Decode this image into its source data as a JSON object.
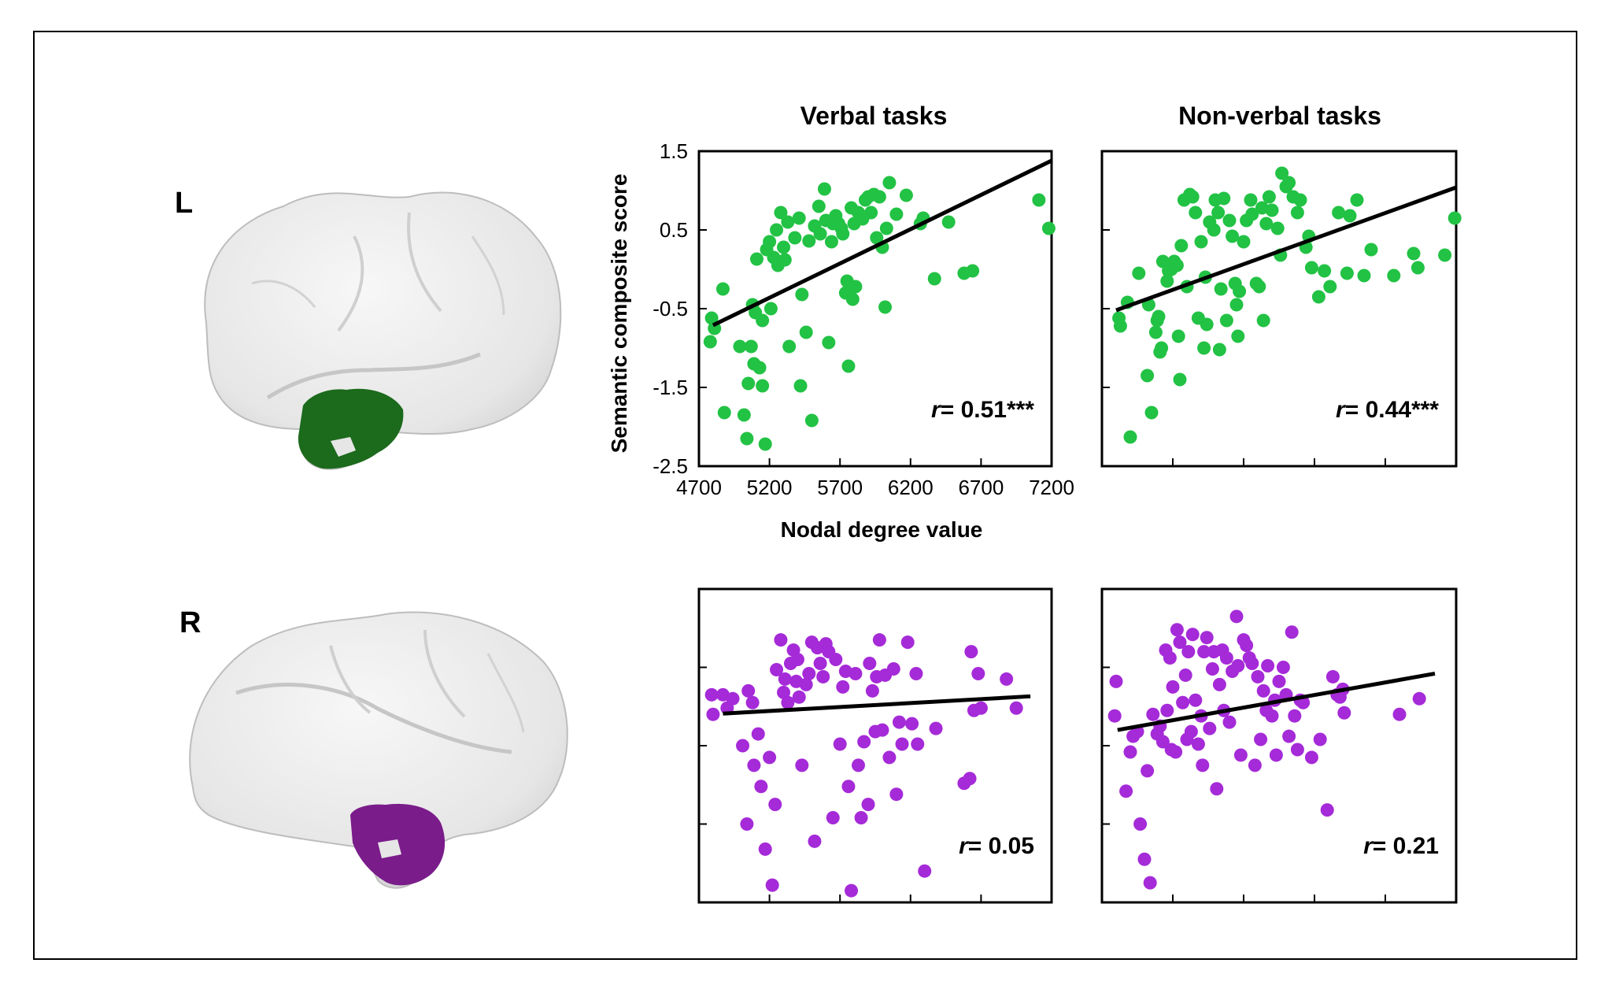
{
  "hemisphere_labels": {
    "left": "L",
    "right": "R"
  },
  "column_titles": {
    "verbal": "Verbal tasks",
    "nonverbal": "Non-verbal tasks"
  },
  "colors": {
    "left": "#22c244",
    "right": "#a52ad8",
    "left_region": "#1c6a1c",
    "right_region": "#7a1c8a",
    "fit_line": "#000000",
    "brain": "#ececec"
  },
  "chart_data": [
    {
      "type": "scatter",
      "hemisphere": "L",
      "title": "Verbal tasks",
      "xlabel": "Nodal degree value",
      "ylabel": "Semantic composite score",
      "xlim": [
        4700,
        7200
      ],
      "ylim": [
        -2.5,
        1.5
      ],
      "xticks": [
        "4700",
        "5200",
        "5700",
        "6200",
        "6700",
        "7200"
      ],
      "yticks": [
        "1.5",
        "0.5",
        "-0.5",
        "-1.5",
        "-2.5"
      ],
      "annotation": {
        "r_label": "r",
        "value": "= 0.51***"
      },
      "fit": {
        "x": [
          4800,
          7200
        ],
        "y": [
          -0.71,
          1.38
        ]
      },
      "points": [
        [
          4780,
          -0.92
        ],
        [
          4790,
          -0.62
        ],
        [
          4810,
          -0.75
        ],
        [
          4870,
          -0.25
        ],
        [
          4880,
          -1.82
        ],
        [
          4990,
          -0.98
        ],
        [
          5020,
          -1.85
        ],
        [
          5040,
          -2.15
        ],
        [
          5050,
          -1.45
        ],
        [
          5070,
          -0.98
        ],
        [
          5090,
          -1.2
        ],
        [
          5080,
          -0.45
        ],
        [
          5100,
          -0.55
        ],
        [
          5110,
          0.13
        ],
        [
          5130,
          -1.25
        ],
        [
          5150,
          -0.65
        ],
        [
          5150,
          -1.48
        ],
        [
          5170,
          -2.22
        ],
        [
          5180,
          0.25
        ],
        [
          5200,
          0.35
        ],
        [
          5210,
          -0.5
        ],
        [
          5230,
          0.15
        ],
        [
          5250,
          0.5
        ],
        [
          5260,
          0.05
        ],
        [
          5280,
          0.72
        ],
        [
          5300,
          0.28
        ],
        [
          5310,
          0.12
        ],
        [
          5330,
          0.6
        ],
        [
          5340,
          -0.98
        ],
        [
          5380,
          0.4
        ],
        [
          5420,
          -1.48
        ],
        [
          5410,
          0.65
        ],
        [
          5430,
          -0.32
        ],
        [
          5460,
          -0.8
        ],
        [
          5480,
          0.36
        ],
        [
          5500,
          -1.92
        ],
        [
          5520,
          0.55
        ],
        [
          5550,
          0.8
        ],
        [
          5560,
          0.45
        ],
        [
          5590,
          1.02
        ],
        [
          5600,
          0.62
        ],
        [
          5620,
          -0.93
        ],
        [
          5640,
          0.35
        ],
        [
          5650,
          0.58
        ],
        [
          5670,
          0.68
        ],
        [
          5690,
          0.58
        ],
        [
          5710,
          0.52
        ],
        [
          5720,
          0.45
        ],
        [
          5740,
          -0.3
        ],
        [
          5750,
          -0.15
        ],
        [
          5760,
          -1.23
        ],
        [
          5780,
          0.78
        ],
        [
          5790,
          -0.38
        ],
        [
          5800,
          0.58
        ],
        [
          5810,
          -0.22
        ],
        [
          5830,
          0.72
        ],
        [
          5860,
          0.64
        ],
        [
          5880,
          0.88
        ],
        [
          5900,
          0.92
        ],
        [
          5920,
          0.72
        ],
        [
          5940,
          0.95
        ],
        [
          5960,
          0.4
        ],
        [
          5980,
          0.92
        ],
        [
          6000,
          0.28
        ],
        [
          6020,
          -0.48
        ],
        [
          6030,
          0.52
        ],
        [
          6050,
          1.1
        ],
        [
          6100,
          0.7
        ],
        [
          6170,
          0.94
        ],
        [
          6270,
          0.58
        ],
        [
          6290,
          0.65
        ],
        [
          6370,
          -0.12
        ],
        [
          6470,
          0.6
        ],
        [
          6580,
          -0.05
        ],
        [
          6640,
          -0.02
        ],
        [
          7110,
          0.88
        ],
        [
          7180,
          0.52
        ]
      ]
    },
    {
      "type": "scatter",
      "hemisphere": "L",
      "title": "Non-verbal tasks",
      "xlim": [
        4700,
        7200
      ],
      "ylim": [
        -2.5,
        1.5
      ],
      "annotation": {
        "r_label": "r",
        "value": "= 0.44***"
      },
      "fit": {
        "x": [
          4800,
          7200
        ],
        "y": [
          -0.52,
          1.04
        ]
      },
      "points": [
        [
          4820,
          -0.62
        ],
        [
          4830,
          -0.72
        ],
        [
          4880,
          -0.42
        ],
        [
          4900,
          -2.13
        ],
        [
          4960,
          -0.05
        ],
        [
          5020,
          -1.35
        ],
        [
          5030,
          -0.45
        ],
        [
          5050,
          -1.82
        ],
        [
          5080,
          -0.8
        ],
        [
          5090,
          -0.65
        ],
        [
          5100,
          -0.6
        ],
        [
          5110,
          -1.05
        ],
        [
          5120,
          -1.0
        ],
        [
          5130,
          0.1
        ],
        [
          5160,
          -0.15
        ],
        [
          5170,
          -0.02
        ],
        [
          5190,
          0.0
        ],
        [
          5210,
          0.1
        ],
        [
          5230,
          0.05
        ],
        [
          5240,
          -0.85
        ],
        [
          5250,
          -1.4
        ],
        [
          5260,
          0.3
        ],
        [
          5280,
          0.88
        ],
        [
          5300,
          -0.22
        ],
        [
          5320,
          0.95
        ],
        [
          5340,
          0.92
        ],
        [
          5360,
          0.72
        ],
        [
          5380,
          -0.62
        ],
        [
          5400,
          0.35
        ],
        [
          5420,
          -1.0
        ],
        [
          5430,
          -0.1
        ],
        [
          5440,
          -0.7
        ],
        [
          5460,
          0.6
        ],
        [
          5490,
          0.5
        ],
        [
          5500,
          0.88
        ],
        [
          5520,
          0.72
        ],
        [
          5530,
          -1.02
        ],
        [
          5540,
          -0.25
        ],
        [
          5560,
          0.9
        ],
        [
          5580,
          -0.65
        ],
        [
          5600,
          0.62
        ],
        [
          5620,
          0.42
        ],
        [
          5640,
          -0.18
        ],
        [
          5650,
          -0.45
        ],
        [
          5660,
          -0.85
        ],
        [
          5670,
          -0.28
        ],
        [
          5700,
          0.35
        ],
        [
          5720,
          0.62
        ],
        [
          5750,
          0.88
        ],
        [
          5760,
          0.7
        ],
        [
          5790,
          -0.18
        ],
        [
          5810,
          -0.22
        ],
        [
          5830,
          0.78
        ],
        [
          5840,
          -0.65
        ],
        [
          5860,
          0.58
        ],
        [
          5880,
          0.92
        ],
        [
          5900,
          0.75
        ],
        [
          5940,
          0.52
        ],
        [
          5960,
          0.18
        ],
        [
          5970,
          1.22
        ],
        [
          6000,
          1.05
        ],
        [
          6020,
          1.1
        ],
        [
          6050,
          0.92
        ],
        [
          6080,
          0.72
        ],
        [
          6100,
          0.88
        ],
        [
          6140,
          0.28
        ],
        [
          6160,
          0.42
        ],
        [
          6180,
          0.02
        ],
        [
          6230,
          -0.35
        ],
        [
          6270,
          -0.02
        ],
        [
          6310,
          -0.22
        ],
        [
          6370,
          0.72
        ],
        [
          6430,
          -0.05
        ],
        [
          6450,
          0.68
        ],
        [
          6500,
          0.88
        ],
        [
          6550,
          -0.08
        ],
        [
          6600,
          0.25
        ],
        [
          6760,
          -0.08
        ],
        [
          6900,
          0.2
        ],
        [
          6930,
          0.02
        ],
        [
          7120,
          0.18
        ],
        [
          7190,
          0.65
        ]
      ]
    },
    {
      "type": "scatter",
      "hemisphere": "R",
      "title": "Verbal tasks",
      "xlim": [
        4700,
        7200
      ],
      "ylim": [
        -2.5,
        1.5
      ],
      "annotation": {
        "r_label": "r",
        "value": "= 0.05"
      },
      "fit": {
        "x": [
          4870,
          7050
        ],
        "y": [
          -0.09,
          0.13
        ]
      },
      "points": [
        [
          4790,
          0.15
        ],
        [
          4800,
          -0.1
        ],
        [
          4870,
          0.15
        ],
        [
          4900,
          -0.02
        ],
        [
          4940,
          0.1
        ],
        [
          5010,
          -0.5
        ],
        [
          5040,
          -1.5
        ],
        [
          5050,
          0.2
        ],
        [
          5080,
          0.05
        ],
        [
          5090,
          -0.75
        ],
        [
          5120,
          -0.35
        ],
        [
          5140,
          -1.02
        ],
        [
          5170,
          -1.82
        ],
        [
          5200,
          -0.65
        ],
        [
          5220,
          -2.28
        ],
        [
          5240,
          -1.25
        ],
        [
          5250,
          0.47
        ],
        [
          5280,
          0.85
        ],
        [
          5300,
          0.18
        ],
        [
          5310,
          0.35
        ],
        [
          5330,
          0.05
        ],
        [
          5350,
          0.55
        ],
        [
          5370,
          0.72
        ],
        [
          5390,
          0.32
        ],
        [
          5400,
          0.6
        ],
        [
          5410,
          0.12
        ],
        [
          5430,
          -0.75
        ],
        [
          5460,
          0.28
        ],
        [
          5480,
          0.42
        ],
        [
          5500,
          0.82
        ],
        [
          5520,
          -1.72
        ],
        [
          5540,
          0.75
        ],
        [
          5560,
          0.55
        ],
        [
          5580,
          0.38
        ],
        [
          5600,
          0.8
        ],
        [
          5620,
          0.7
        ],
        [
          5650,
          -1.42
        ],
        [
          5670,
          0.6
        ],
        [
          5700,
          -0.48
        ],
        [
          5720,
          0.25
        ],
        [
          5740,
          0.45
        ],
        [
          5760,
          -1.02
        ],
        [
          5780,
          -2.35
        ],
        [
          5810,
          0.42
        ],
        [
          5830,
          -0.75
        ],
        [
          5850,
          -1.42
        ],
        [
          5870,
          -0.45
        ],
        [
          5900,
          -1.25
        ],
        [
          5910,
          0.55
        ],
        [
          5930,
          0.2
        ],
        [
          5950,
          -0.32
        ],
        [
          5960,
          0.38
        ],
        [
          5980,
          0.85
        ],
        [
          6000,
          -0.3
        ],
        [
          6020,
          0.4
        ],
        [
          6050,
          -0.65
        ],
        [
          6080,
          0.48
        ],
        [
          6100,
          -1.12
        ],
        [
          6120,
          -0.2
        ],
        [
          6140,
          -0.48
        ],
        [
          6180,
          0.82
        ],
        [
          6210,
          -0.22
        ],
        [
          6240,
          0.42
        ],
        [
          6250,
          -0.48
        ],
        [
          6300,
          -2.1
        ],
        [
          6380,
          -0.28
        ],
        [
          6580,
          -0.98
        ],
        [
          6620,
          -0.92
        ],
        [
          6630,
          0.7
        ],
        [
          6650,
          -0.05
        ],
        [
          6680,
          0.42
        ],
        [
          6700,
          -0.02
        ],
        [
          6880,
          0.35
        ],
        [
          6950,
          -0.02
        ]
      ]
    },
    {
      "type": "scatter",
      "hemisphere": "R",
      "title": "Non-verbal tasks",
      "xlim": [
        4700,
        7200
      ],
      "ylim": [
        -2.5,
        1.5
      ],
      "annotation": {
        "r_label": "r",
        "value": "= 0.21"
      },
      "fit": {
        "x": [
          4810,
          7050
        ],
        "y": [
          -0.3,
          0.42
        ]
      },
      "points": [
        [
          4790,
          -0.12
        ],
        [
          4800,
          0.32
        ],
        [
          4870,
          -1.08
        ],
        [
          4900,
          -0.58
        ],
        [
          4920,
          -0.38
        ],
        [
          4950,
          -0.32
        ],
        [
          4970,
          -1.5
        ],
        [
          5000,
          -1.95
        ],
        [
          5020,
          -0.82
        ],
        [
          5040,
          -2.25
        ],
        [
          5060,
          -0.1
        ],
        [
          5090,
          -0.35
        ],
        [
          5110,
          -0.25
        ],
        [
          5130,
          -0.45
        ],
        [
          5150,
          0.72
        ],
        [
          5160,
          -0.05
        ],
        [
          5180,
          0.62
        ],
        [
          5190,
          -0.55
        ],
        [
          5200,
          0.25
        ],
        [
          5220,
          -0.58
        ],
        [
          5230,
          0.98
        ],
        [
          5250,
          0.82
        ],
        [
          5270,
          0.05
        ],
        [
          5290,
          0.4
        ],
        [
          5300,
          -0.42
        ],
        [
          5310,
          0.7
        ],
        [
          5330,
          -0.32
        ],
        [
          5340,
          0.92
        ],
        [
          5360,
          0.08
        ],
        [
          5380,
          -0.48
        ],
        [
          5400,
          -0.12
        ],
        [
          5410,
          -0.75
        ],
        [
          5420,
          0.7
        ],
        [
          5440,
          0.88
        ],
        [
          5460,
          -0.28
        ],
        [
          5480,
          0.48
        ],
        [
          5490,
          0.7
        ],
        [
          5510,
          -1.05
        ],
        [
          5530,
          0.28
        ],
        [
          5550,
          0.72
        ],
        [
          5560,
          -0.05
        ],
        [
          5580,
          0.62
        ],
        [
          5600,
          -0.2
        ],
        [
          5620,
          0.45
        ],
        [
          5650,
          1.15
        ],
        [
          5660,
          0.52
        ],
        [
          5680,
          -0.62
        ],
        [
          5700,
          0.85
        ],
        [
          5720,
          0.78
        ],
        [
          5740,
          0.62
        ],
        [
          5760,
          0.55
        ],
        [
          5780,
          -0.75
        ],
        [
          5800,
          0.38
        ],
        [
          5820,
          -0.42
        ],
        [
          5840,
          0.2
        ],
        [
          5860,
          -0.05
        ],
        [
          5870,
          0.52
        ],
        [
          5900,
          -0.12
        ],
        [
          5920,
          0.08
        ],
        [
          5930,
          -0.62
        ],
        [
          5950,
          0.32
        ],
        [
          5980,
          0.5
        ],
        [
          6000,
          0.15
        ],
        [
          6020,
          -0.38
        ],
        [
          6040,
          0.95
        ],
        [
          6060,
          -0.12
        ],
        [
          6080,
          -0.55
        ],
        [
          6100,
          0.08
        ],
        [
          6120,
          0.05
        ],
        [
          6180,
          -0.65
        ],
        [
          6240,
          -0.42
        ],
        [
          6290,
          -1.32
        ],
        [
          6330,
          0.38
        ],
        [
          6360,
          0.15
        ],
        [
          6380,
          0.12
        ],
        [
          6400,
          0.22
        ],
        [
          6410,
          -0.08
        ],
        [
          6800,
          -0.1
        ],
        [
          6940,
          0.1
        ]
      ]
    }
  ]
}
